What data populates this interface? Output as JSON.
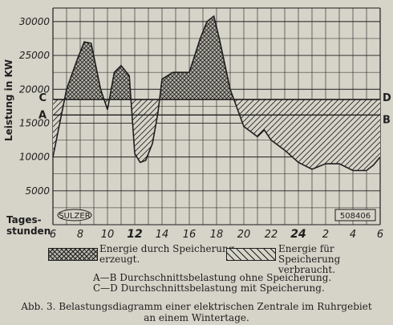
{
  "chart_data": {
    "type": "area",
    "ylabel": "Leistung in KW",
    "xlabel_line1": "Tages-",
    "xlabel_line2": "stunden",
    "ylim": [
      0,
      32000
    ],
    "yticks": [
      5000,
      10000,
      15000,
      20000,
      25000,
      30000
    ],
    "xticks": [
      {
        "label": "6",
        "bold": false
      },
      {
        "label": "8",
        "bold": false
      },
      {
        "label": "10",
        "bold": false
      },
      {
        "label": "12",
        "bold": true
      },
      {
        "label": "14",
        "bold": false
      },
      {
        "label": "16",
        "bold": false
      },
      {
        "label": "18",
        "bold": false
      },
      {
        "label": "20",
        "bold": false
      },
      {
        "label": "22",
        "bold": false
      },
      {
        "label": "24",
        "bold": true
      },
      {
        "label": "2",
        "bold": false
      },
      {
        "label": "4",
        "bold": false
      },
      {
        "label": "6",
        "bold": false
      }
    ],
    "hours_start": 6,
    "hours_end": 30,
    "load_curve": {
      "x": [
        6,
        7,
        7.8,
        8.3,
        8.8,
        9.5,
        10,
        10.5,
        11,
        11.6,
        12,
        12.4,
        12.8,
        13.3,
        13.7,
        14,
        14.8,
        15.3,
        16,
        16.8,
        17.3,
        17.8,
        18.2,
        19,
        20,
        21,
        21.5,
        22,
        23,
        24,
        25,
        26,
        27,
        28,
        29,
        29.5,
        30
      ],
      "y": [
        10000,
        20000,
        24500,
        27000,
        26800,
        20000,
        17000,
        22500,
        23500,
        22000,
        10500,
        9200,
        9500,
        12000,
        16500,
        21500,
        22500,
        22500,
        22500,
        27500,
        30000,
        30800,
        27500,
        20000,
        14500,
        13000,
        14000,
        12500,
        11000,
        9200,
        8200,
        9000,
        9000,
        8000,
        8000,
        8800,
        10000
      ]
    },
    "line_AB": {
      "start_label": "A",
      "end_label": "B",
      "value": 16200
    },
    "line_CD": {
      "start_label": "C",
      "end_label": "D",
      "value": 18500
    },
    "stamp_left": "SULZER",
    "stamp_right": "508406",
    "legend": [
      {
        "label_line1": "Energie durch Speicherung",
        "label_line2": "erzeugt.",
        "pattern": "crosshatch"
      },
      {
        "label_line1": "Energie für Speicherung",
        "label_line2": "verbraucht.",
        "pattern": "diagonal"
      }
    ],
    "line_legend": [
      "A—B Durchschnittsbelastung ohne Speicherung.",
      "C—D Durchschnittsbelastung mit Speicherung."
    ],
    "caption_line1": "Abb. 3. Belastungsdiagramm einer elektrischen Zentrale im Ruhrgebiet",
    "caption_line2": "an einem Wintertage.",
    "colors": {
      "ink": "#1e1e1e",
      "paper": "#d6d3c8",
      "shade": "#b8b5ab"
    }
  }
}
